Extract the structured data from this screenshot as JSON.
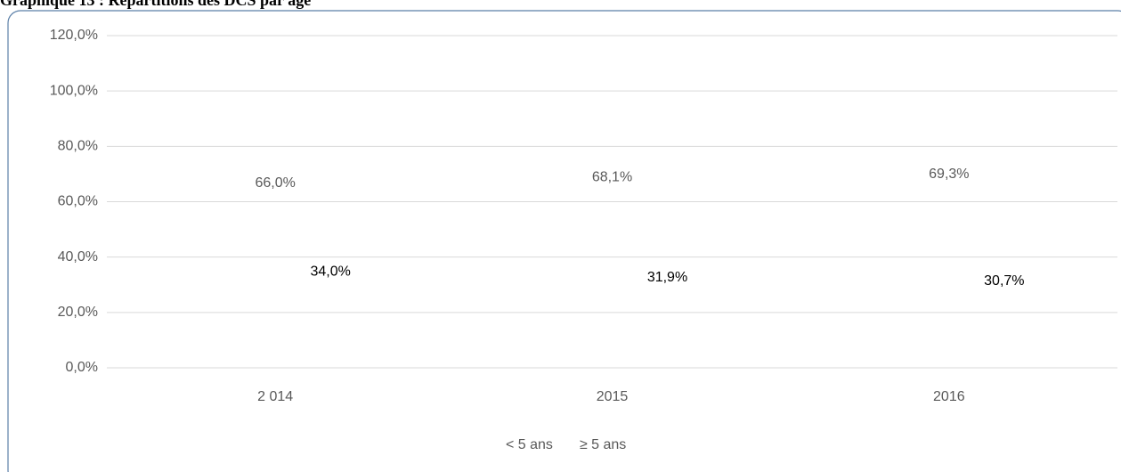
{
  "chart_data": {
    "type": "line",
    "title": "Graphique 13 : Répartitions des DCS par âge",
    "categories": [
      "2 014",
      "2015",
      "2016"
    ],
    "series": [
      {
        "name": "< 5 ans",
        "values": [
          66.0,
          68.1,
          69.3
        ],
        "value_labels": [
          "66,0%",
          "68,1%",
          "69,3%"
        ]
      },
      {
        "name": "≥ 5 ans",
        "values": [
          34.0,
          31.9,
          30.7
        ],
        "value_labels": [
          "34,0%",
          "31,9%",
          "30,7%"
        ]
      }
    ],
    "ylim": [
      0,
      120
    ],
    "yticks": [
      {
        "value": 0,
        "label": "0,0%"
      },
      {
        "value": 20,
        "label": "20,0%"
      },
      {
        "value": 40,
        "label": "40,0%"
      },
      {
        "value": 60,
        "label": "60,0%"
      },
      {
        "value": 80,
        "label": "80,0%"
      },
      {
        "value": 100,
        "label": "100,0%"
      },
      {
        "value": 120,
        "label": "120,0%"
      }
    ],
    "grid": true,
    "legend": "bottom"
  }
}
